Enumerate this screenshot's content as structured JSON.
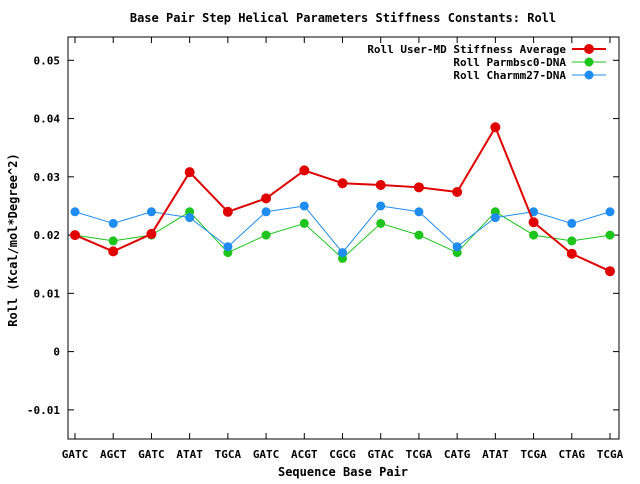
{
  "chart_data": {
    "type": "line",
    "title": "Base Pair Step Helical Parameters Stiffness Constants: Roll",
    "xlabel": "Sequence Base Pair",
    "ylabel": "Roll (Kcal/mol*Degree^2)",
    "categories": [
      "GATC",
      "AGCT",
      "GATC",
      "ATAT",
      "TGCA",
      "GATC",
      "ACGT",
      "CGCG",
      "GTAC",
      "TCGA",
      "CATG",
      "ATAT",
      "TCGA",
      "CTAG",
      "TCGA"
    ],
    "ylim": [
      -0.015,
      0.054
    ],
    "yticks": [
      -0.01,
      0,
      0.01,
      0.02,
      0.03,
      0.04,
      0.05
    ],
    "ytick_labels": [
      "-0.01",
      "0",
      "0.01",
      "0.02",
      "0.03",
      "0.04",
      "0.05"
    ],
    "grid": false,
    "legend_position": "top-right",
    "series": [
      {
        "name": "Roll User-MD Stiffness Average",
        "color": "#e00000",
        "values": [
          0.02,
          0.0172,
          0.0202,
          0.0308,
          0.024,
          0.0263,
          0.0311,
          0.0289,
          0.0286,
          0.0282,
          0.0274,
          0.0385,
          0.0222,
          0.0168,
          0.0138
        ]
      },
      {
        "name": "Roll Parmbsc0-DNA",
        "color": "#1cc41c",
        "values": [
          0.02,
          0.019,
          0.02,
          0.024,
          0.017,
          0.02,
          0.022,
          0.016,
          0.022,
          0.02,
          0.017,
          0.024,
          0.02,
          0.019,
          0.02
        ]
      },
      {
        "name": "Roll Charmm27-DNA",
        "color": "#1e8cf0",
        "values": [
          0.024,
          0.022,
          0.024,
          0.023,
          0.018,
          0.024,
          0.025,
          0.017,
          0.025,
          0.024,
          0.018,
          0.023,
          0.024,
          0.022,
          0.024
        ]
      }
    ]
  }
}
